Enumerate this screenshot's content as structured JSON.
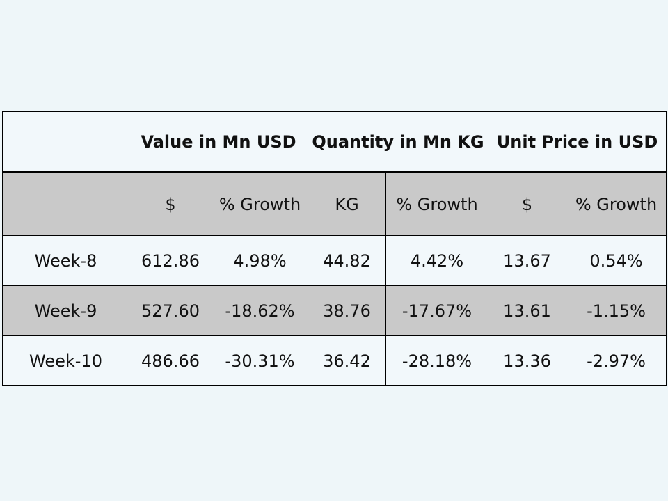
{
  "table": {
    "group_headers": [
      {
        "label": ""
      },
      {
        "label": "Value in Mn USD"
      },
      {
        "label": "Quantity in Mn KG"
      },
      {
        "label": "Unit Price in USD"
      }
    ],
    "sub_headers": [
      "",
      "$",
      "% Growth",
      "KG",
      "% Growth",
      "$",
      "% Growth"
    ],
    "rows": [
      {
        "week": "Week-8",
        "value": "612.86",
        "value_growth": "4.98%",
        "qty": "44.82",
        "qty_growth": "4.42%",
        "price": "13.67",
        "price_growth": "0.54%"
      },
      {
        "week": "Week-9",
        "value": "527.60",
        "value_growth": "-18.62%",
        "qty": "38.76",
        "qty_growth": "-17.67%",
        "price": "13.61",
        "price_growth": "-1.15%"
      },
      {
        "week": "Week-10",
        "value": "486.66",
        "value_growth": "-30.31%",
        "qty": "36.42",
        "qty_growth": "-28.18%",
        "price": "13.36",
        "price_growth": "-2.97%"
      }
    ]
  }
}
